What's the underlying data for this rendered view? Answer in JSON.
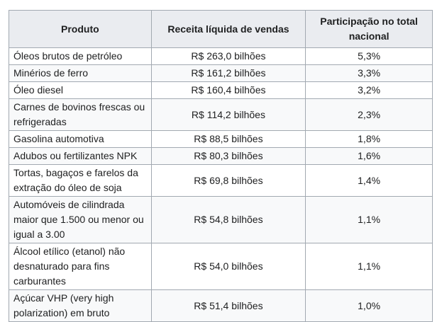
{
  "table": {
    "headers": [
      "Produto",
      "Receita líquida de vendas",
      "Participação no total nacional"
    ],
    "rows": [
      [
        "Óleos brutos de petróleo",
        "R$ 263,0 bilhões",
        "5,3%"
      ],
      [
        "Minérios de ferro",
        "R$ 161,2 bilhões",
        "3,3%"
      ],
      [
        "Óleo diesel",
        "R$ 160,4 bilhões",
        "3,2%"
      ],
      [
        "Carnes de bovinos frescas ou refrigeradas",
        "R$ 114,2 bilhões",
        "2,3%"
      ],
      [
        "Gasolina automotiva",
        "R$ 88,5 bilhões",
        "1,8%"
      ],
      [
        "Adubos ou fertilizantes NPK",
        "R$ 80,3 bilhões",
        "1,6%"
      ],
      [
        "Tortas, bagaços e farelos da extração do óleo de soja",
        "R$ 69,8 bilhões",
        "1,4%"
      ],
      [
        "Automóveis de cilindrada maior que 1.500 ou menor ou igual a 3.00",
        "R$ 54,8 bilhões",
        "1,1%"
      ],
      [
        "Álcool etílico (etanol) não desnaturado para fins carburantes",
        "R$ 54,0 bilhões",
        "1,1%"
      ],
      [
        "Açúcar VHP (very high polarization) em bruto",
        "R$ 51,4 bilhões",
        "1,0%"
      ]
    ]
  }
}
